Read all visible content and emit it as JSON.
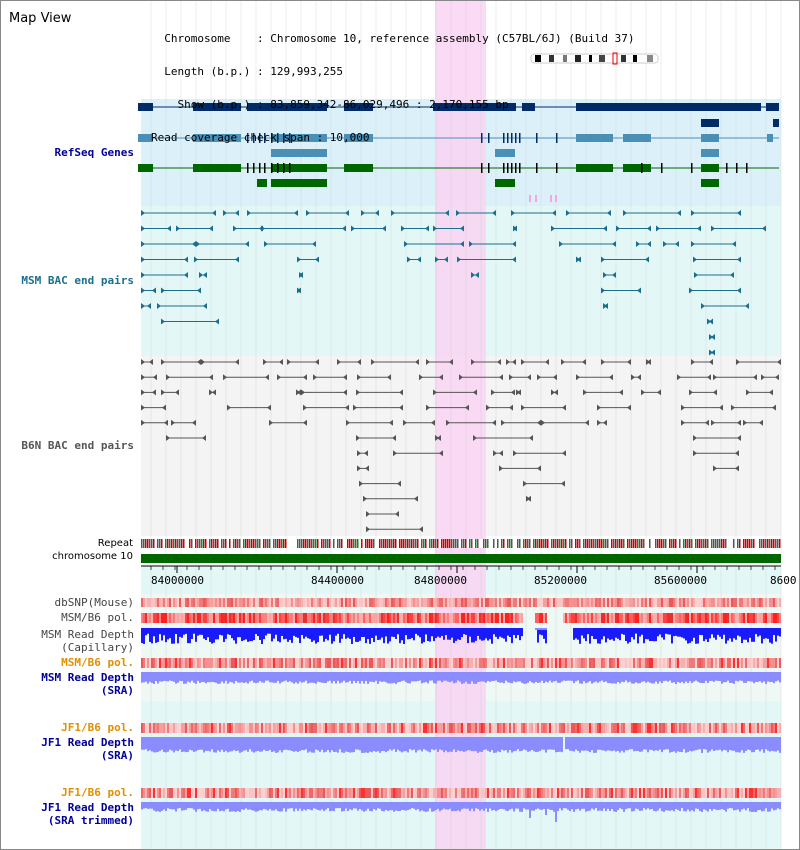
{
  "header": {
    "title": "Map View",
    "info_lines": [
      "  Chromosome    : Chromosome 10, reference assembly (C57BL/6J) (Build 37)",
      "  Length (b.p.) : 129,993,255",
      "    Show (b.p.) : 83,859,342-86,029,496 : 2,170,155 bp",
      "Read coverage check span : 10,000"
    ]
  },
  "labels": {
    "refseq": "RefSeq Genes",
    "msm_bac": "MSM BAC end pairs",
    "b6n_bac": "B6N BAC end pairs",
    "repeat": "Repeat",
    "chromosome": "chromosome 10",
    "dbsnp": "dbSNP(Mouse)",
    "msm_b6_pol_1": "MSM/B6 pol.",
    "msm_read_depth_cap": "MSM Read Depth",
    "msm_read_depth_cap_sub": "(Capillary)",
    "msm_b6_pol_2": "MSM/B6 pol.",
    "msm_read_depth_sra": "MSM Read Depth",
    "msm_read_depth_sra_sub": "(SRA)",
    "jf1_b6_pol_1": "JF1/B6 pol.",
    "jf1_read_depth_sra": "JF1 Read Depth",
    "jf1_read_depth_sra_sub": "(SRA)",
    "jf1_b6_pol_2": "JF1/B6 pol.",
    "jf1_read_depth_trim": "JF1 Read Depth",
    "jf1_read_depth_trim_sub": "(SRA trimmed)"
  },
  "axis": {
    "ticks": [
      "84000000",
      "84400000",
      "84800000",
      "85200000",
      "85600000",
      "8600"
    ]
  },
  "colors": {
    "refseq_dark": "#002b66",
    "refseq_teal": "#4a8fb5",
    "refseq_green": "#006600",
    "msm_bac": "#1a6f8f",
    "b6n_bac": "#555555",
    "highlight": "#f9d4f2",
    "label_blue": "#000099",
    "label_orange": "#e09000"
  }
}
